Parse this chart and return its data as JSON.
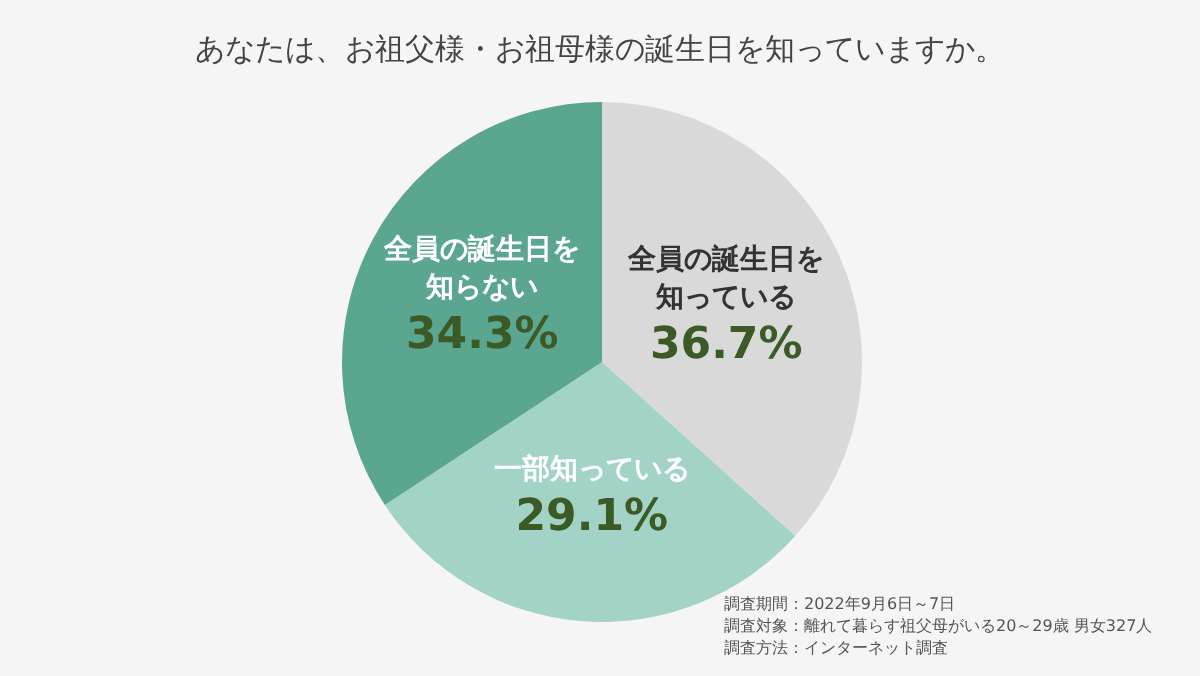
{
  "chart_data": {
    "type": "pie",
    "title": "あなたは、お祖父様・お祖母様の誕生日を知っていますか。",
    "categories": [
      "全員の誕生日を知っている",
      "一部知っている",
      "全員の誕生日を知らない"
    ],
    "values": [
      36.7,
      29.1,
      34.3
    ],
    "colors": [
      "#d9d9d9",
      "#a3d3c6",
      "#5aa690"
    ],
    "value_labels": [
      "36.7%",
      "29.1%",
      "34.3%"
    ],
    "legend": false,
    "annotations": [
      "調査期間：2022年9月6日～7日",
      "調査対象：離れて暮らす祖父母がいる20～29歳 男女327人",
      "調査方法：インターネット調査"
    ]
  }
}
